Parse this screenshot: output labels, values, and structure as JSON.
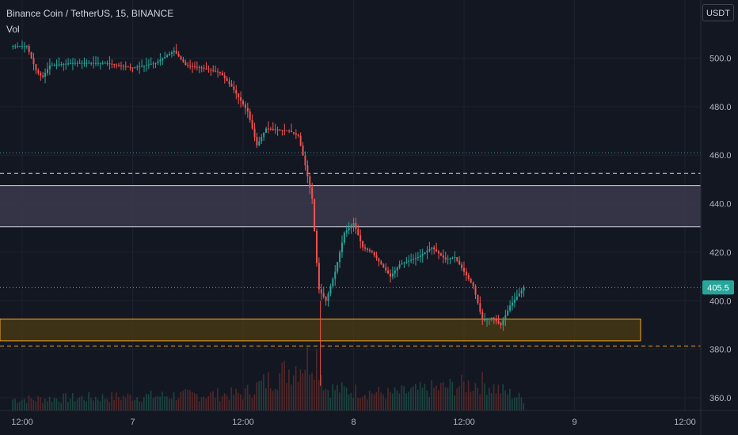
{
  "header": {
    "title": "Binance Coin / TetherUS, 15, BINANCE",
    "indicator": "Vol",
    "currency_button": "USDT"
  },
  "colors": {
    "background": "#131722",
    "grid": "#1e2230",
    "axis_text": "#b2b5be",
    "up": "#26a69a",
    "down": "#ef5350",
    "resistance_zone": "#3b3a4c",
    "support_zone": "#4a3a14",
    "support_line": "#f5a623",
    "resistance_line": "#d1d4dc"
  },
  "chart_data": {
    "type": "candlestick",
    "title": "Binance Coin / TetherUS, 15, BINANCE",
    "xlabel": "",
    "ylabel": "",
    "ylim": [
      355,
      512
    ],
    "xlim": [
      0,
      76
    ],
    "yticks": [
      "500.0",
      "480.0",
      "460.0",
      "440.0",
      "420.0",
      "400.0",
      "380.0",
      "360.0"
    ],
    "ytick_values": [
      500,
      480,
      460,
      440,
      420,
      400,
      380,
      360
    ],
    "xticks": [
      "12:00",
      "7",
      "12:00",
      "8",
      "12:00",
      "9",
      "12:00"
    ],
    "xtick_hours": [
      0,
      12,
      24,
      36,
      48,
      60,
      72
    ],
    "last_price": 405.5,
    "last_price_label": "405.5",
    "grid": true,
    "price_path": [
      [
        -1.0,
        505
      ],
      [
        0.5,
        505
      ],
      [
        1.5,
        495
      ],
      [
        2.2,
        492
      ],
      [
        3.0,
        497
      ],
      [
        5.5,
        498
      ],
      [
        9.0,
        498
      ],
      [
        12.0,
        496
      ],
      [
        14.5,
        498
      ],
      [
        16.5,
        503
      ],
      [
        17.8,
        497
      ],
      [
        19.5,
        496
      ],
      [
        21.5,
        494
      ],
      [
        22.8,
        488
      ],
      [
        24.5,
        478
      ],
      [
        25.5,
        464
      ],
      [
        26.5,
        471
      ],
      [
        29.0,
        470
      ],
      [
        30.0,
        468
      ],
      [
        30.8,
        455
      ],
      [
        31.5,
        442
      ],
      [
        32.2,
        405
      ],
      [
        33.0,
        400
      ],
      [
        34.0,
        412
      ],
      [
        35.0,
        428
      ],
      [
        36.0,
        432
      ],
      [
        37.0,
        422
      ],
      [
        38.0,
        420
      ],
      [
        39.0,
        415
      ],
      [
        40.0,
        410
      ],
      [
        41.0,
        415
      ],
      [
        43.0,
        418
      ],
      [
        44.5,
        422
      ],
      [
        46.0,
        417
      ],
      [
        47.0,
        418
      ],
      [
        48.0,
        412
      ],
      [
        49.0,
        406
      ],
      [
        50.0,
        392
      ],
      [
        51.0,
        393
      ],
      [
        52.0,
        390
      ],
      [
        53.0,
        398
      ],
      [
        54.0,
        403
      ],
      [
        54.6,
        406
      ]
    ],
    "volume_path": [
      [
        -1,
        2
      ],
      [
        24,
        3
      ],
      [
        32,
        10
      ],
      [
        33,
        4
      ],
      [
        40,
        3
      ],
      [
        50,
        5
      ],
      [
        54.6,
        2
      ]
    ],
    "zones": [
      {
        "name": "resistance-zone",
        "y_low": 430.5,
        "y_high": 447.5
      },
      {
        "name": "support-zone",
        "y_low": 383.5,
        "y_high": 392.5
      }
    ],
    "levels": [
      {
        "name": "dashed-level-upper",
        "y": 452.5,
        "style": "dashed"
      },
      {
        "name": "dotted-level-460",
        "y": 461,
        "style": "dotted"
      },
      {
        "name": "dashed-level-lower",
        "y": 381.3,
        "style": "dashed"
      },
      {
        "name": "last-price-line",
        "y": 405.5,
        "style": "dotted"
      }
    ]
  }
}
